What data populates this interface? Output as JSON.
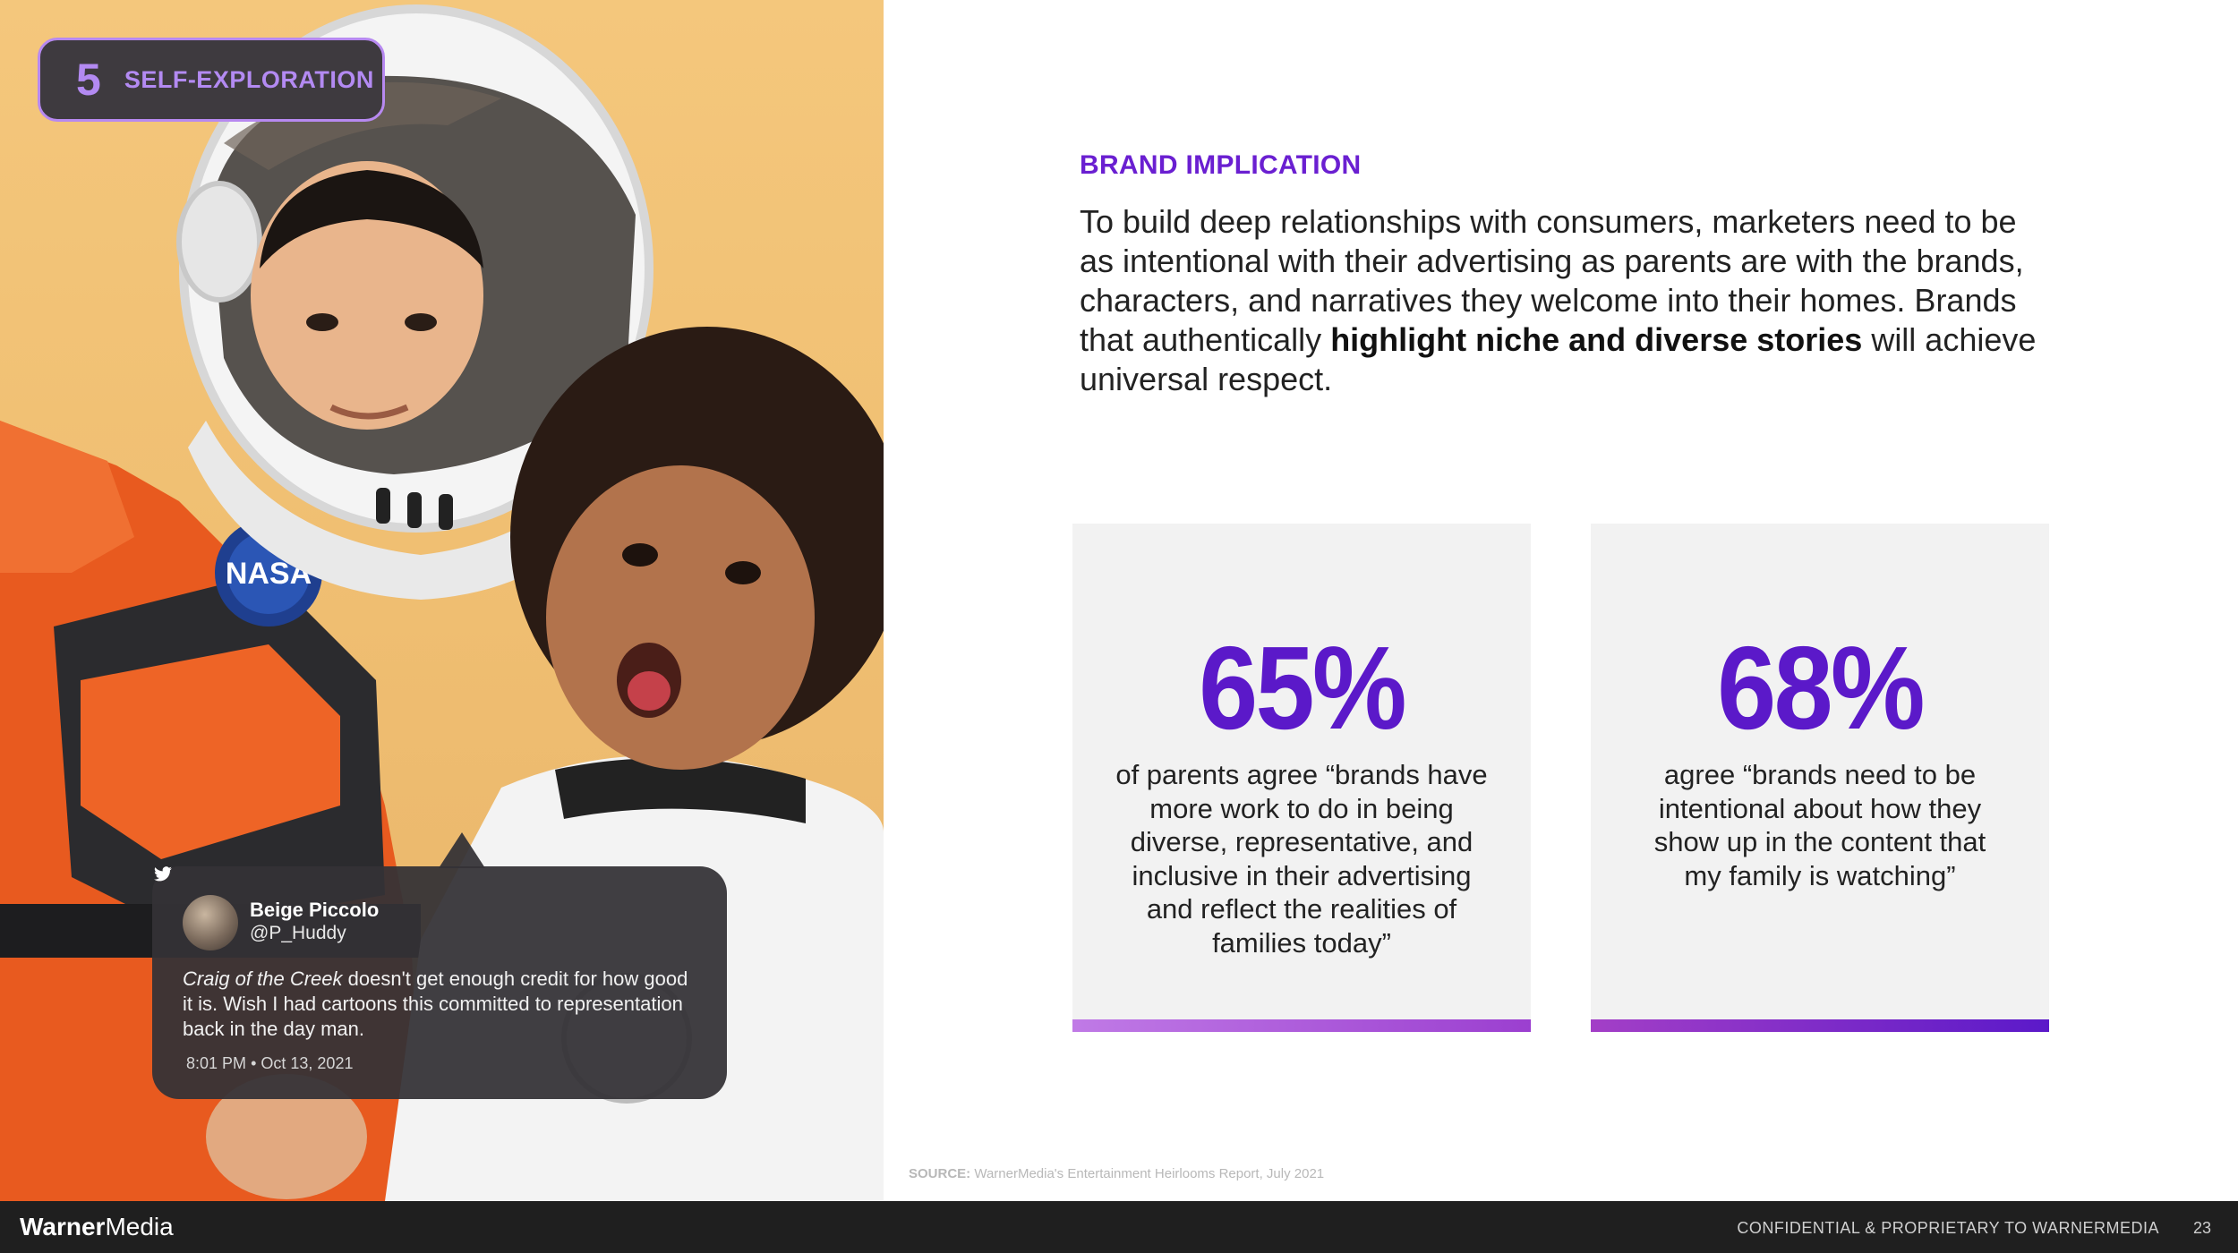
{
  "section": {
    "number": "5",
    "label": "SELF-EXPLORATION"
  },
  "photo": {
    "description_icon": "kids-in-astronaut-costumes-photo",
    "badge_text": "NASA"
  },
  "tweet": {
    "name": "Beige Piccolo",
    "handle": "@P_Huddy",
    "body_italic": "Craig of the Creek",
    "body_rest": " doesn't get enough credit for how good it is. Wish I had cartoons this committed to representation back in the day man.",
    "time": "8:01 PM",
    "separator": "•",
    "date": "Oct 13, 2021",
    "icon": "twitter-bird-icon"
  },
  "brand": {
    "eyebrow": "BRAND IMPLICATION",
    "body_plain": "To build deep relationships with consumers, marketers need to be as intentional with their advertising as parents are with the brands, characters, and narratives they welcome into their homes. Brands that authentically ",
    "body_bold": "highlight niche and diverse stories",
    "body_end": " will achieve universal respect."
  },
  "stats": [
    {
      "value": "65%",
      "description": "of parents agree “brands have more work to do in being diverse, representative, and inclusive in their advertising and reflect the realities of families today”",
      "bar_gradient": [
        "#c07ae6",
        "#9b3fd0"
      ]
    },
    {
      "value": "68%",
      "description": "agree “brands need to be intentional about how they show up in the content that my family is watching”",
      "bar_gradient": [
        "#a33fc7",
        "#5b19c9"
      ]
    }
  ],
  "source": {
    "label": "SOURCE:",
    "text": " WarnerMedia's Entertainment Heirlooms Report, July 2021"
  },
  "footer": {
    "logo_bold": "Warner",
    "logo_regular": "Media",
    "confidential": "CONFIDENTIAL & PROPRIETARY TO WARNERMEDIA",
    "page": "23"
  },
  "colors": {
    "accent": "#5b19c9",
    "eyebrow": "#6a1fd1",
    "badge_text": "#b38af2",
    "footer_bg": "#1f1f1f"
  }
}
